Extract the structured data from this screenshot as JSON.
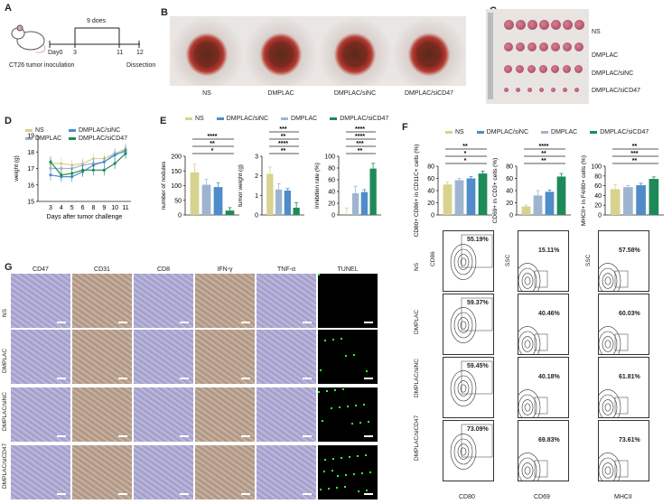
{
  "panel_labels": [
    "A",
    "B",
    "C",
    "D",
    "E",
    "F",
    "G"
  ],
  "colors": {
    "NS": "#d6d38e",
    "DMPLAC": "#9fb5cf",
    "DMPLAC/siNC": "#4f8cc9",
    "DMPLAC/siCD47": "#1e8a5a"
  },
  "panelA": {
    "bracket": "9 does",
    "ticks": [
      "Day0",
      "3",
      "11",
      "12"
    ],
    "start": "CT26 tumor inoculation",
    "end": "Dissection",
    "icon": "mouse-icon"
  },
  "panelB": {
    "labels": [
      "NS",
      "DMPLAC",
      "DMPLAC/siNC",
      "DMPLAC/siCD47"
    ]
  },
  "panelC": {
    "labels": [
      "NS",
      "DMPLAC",
      "DMPLAC/siNC",
      "DMPLAC/siCD47"
    ]
  },
  "legend": [
    "NS",
    "DMPLAC/siNC",
    "DMPLAC",
    "DMPLAC/siCD47"
  ],
  "chart_data": [
    {
      "id": "D",
      "type": "line",
      "xlabel": "Days after tumor challenge",
      "ylabel": "weight (g)",
      "ylim": [
        15,
        19
      ],
      "yticks": [
        "15",
        "16",
        "17",
        "18",
        "19"
      ],
      "x": [
        3,
        4,
        5,
        6,
        8,
        9,
        10,
        11
      ],
      "xticks": [
        "3",
        "4",
        "5",
        "6",
        "8",
        "9",
        "10",
        "11"
      ],
      "series": [
        {
          "name": "NS",
          "values": [
            17.3,
            17.3,
            17.2,
            17.3,
            17.6,
            17.6,
            17.9,
            18.2
          ]
        },
        {
          "name": "DMPLAC",
          "values": [
            17.0,
            17.0,
            17.0,
            17.2,
            17.3,
            17.4,
            17.9,
            18.0
          ]
        },
        {
          "name": "DMPLAC/siNC",
          "values": [
            16.6,
            16.5,
            16.5,
            16.8,
            17.2,
            17.4,
            17.8,
            18.1
          ]
        },
        {
          "name": "DMPLAC/siCD47",
          "values": [
            17.4,
            16.6,
            16.7,
            16.9,
            16.9,
            16.9,
            17.3,
            17.9
          ]
        }
      ]
    },
    {
      "id": "E1",
      "type": "bar",
      "ylabel": "number of nodules",
      "ylim": [
        0,
        200
      ],
      "yticks": [
        "0",
        "50",
        "100",
        "150",
        "200"
      ],
      "categories": [
        "NS",
        "DMPLAC",
        "DMPLAC/siNC",
        "DMPLAC/siCD47"
      ],
      "values": [
        145,
        103,
        95,
        15
      ],
      "errors": [
        28,
        18,
        15,
        10
      ],
      "sig": [
        "*",
        "**",
        "****"
      ]
    },
    {
      "id": "E2",
      "type": "bar",
      "ylabel": "tumor weight (g)",
      "ylim": [
        0,
        3
      ],
      "yticks": [
        "0",
        "1",
        "2",
        "3"
      ],
      "categories": [
        "NS",
        "DMPLAC",
        "DMPLAC/siNC",
        "DMPLAC/siCD47"
      ],
      "values": [
        2.1,
        1.3,
        1.25,
        0.37
      ],
      "errors": [
        0.35,
        0.3,
        0.1,
        0.25
      ],
      "sig": [
        "**",
        "****",
        "**",
        "***"
      ]
    },
    {
      "id": "E3",
      "type": "bar",
      "ylabel": "Inhibition rate (%)",
      "ylim": [
        0,
        100
      ],
      "yticks": [
        "0",
        "20",
        "40",
        "60",
        "80",
        "100"
      ],
      "categories": [
        "NS",
        "DMPLAC",
        "DMPLAC/siNC",
        "DMPLAC/siCD47"
      ],
      "values": [
        0,
        37,
        39,
        79
      ],
      "errors": [
        12,
        12,
        4,
        9
      ],
      "sig": [
        "**",
        "***",
        "****",
        "****"
      ]
    },
    {
      "id": "F1",
      "type": "bar",
      "ylabel": "CD80+ CD86+ in CD11C+ cells (%)",
      "ylim": [
        0,
        80
      ],
      "yticks": [
        "0",
        "20",
        "40",
        "60",
        "80"
      ],
      "categories": [
        "NS",
        "DMPLAC",
        "DMPLAC/siNC",
        "DMPLAC/siCD47"
      ],
      "values": [
        50,
        57,
        60,
        68
      ],
      "errors": [
        4,
        3,
        3,
        4
      ],
      "sig": [
        "*",
        "*",
        "**"
      ]
    },
    {
      "id": "F2",
      "type": "bar",
      "ylabel": "CD69+ in CD3+ cells (%)",
      "ylim": [
        0,
        80
      ],
      "yticks": [
        "0",
        "20",
        "40",
        "60",
        "80"
      ],
      "categories": [
        "NS",
        "DMPLAC",
        "DMPLAC/siNC",
        "DMPLAC/siCD47"
      ],
      "values": [
        14,
        32,
        38,
        63
      ],
      "errors": [
        2,
        8,
        3,
        5
      ],
      "sig": [
        "**",
        "**",
        "****"
      ]
    },
    {
      "id": "F3",
      "type": "bar",
      "ylabel": "MHCII+ in F4/80+ cells (%)",
      "ylim": [
        0,
        100
      ],
      "yticks": [
        "0",
        "20",
        "40",
        "60",
        "80",
        "100"
      ],
      "categories": [
        "NS",
        "DMPLAC",
        "DMPLAC/siNC",
        "DMPLAC/siCD47"
      ],
      "values": [
        53,
        57,
        61,
        74
      ],
      "errors": [
        9,
        3,
        4,
        4
      ],
      "sig": [
        "**",
        "***",
        "**"
      ]
    }
  ],
  "flow": {
    "rows": [
      "NS",
      "DMPLAC",
      "DMPLAC/siNC",
      "DMPLAC/siCD47"
    ],
    "xaxes": [
      "CD80",
      "CD69",
      "MHCII"
    ],
    "yaxes": [
      "CD86",
      "SSC",
      "SSC"
    ],
    "values": [
      [
        "55.19%",
        "15.11%",
        "57.58%"
      ],
      [
        "59.37%",
        "40.46%",
        "60.03%"
      ],
      [
        "59.45%",
        "40.18%",
        "61.81%"
      ],
      [
        "73.09%",
        "69.83%",
        "73.61%"
      ]
    ]
  },
  "panelG": {
    "columns": [
      "CD47",
      "CD31",
      "CD8",
      "IFN-γ",
      "TNF-α",
      "TUNEL"
    ],
    "rows": [
      "NS",
      "DMPLAC",
      "DMPLAC/siNC",
      "DMPLAC/siCD47"
    ]
  }
}
